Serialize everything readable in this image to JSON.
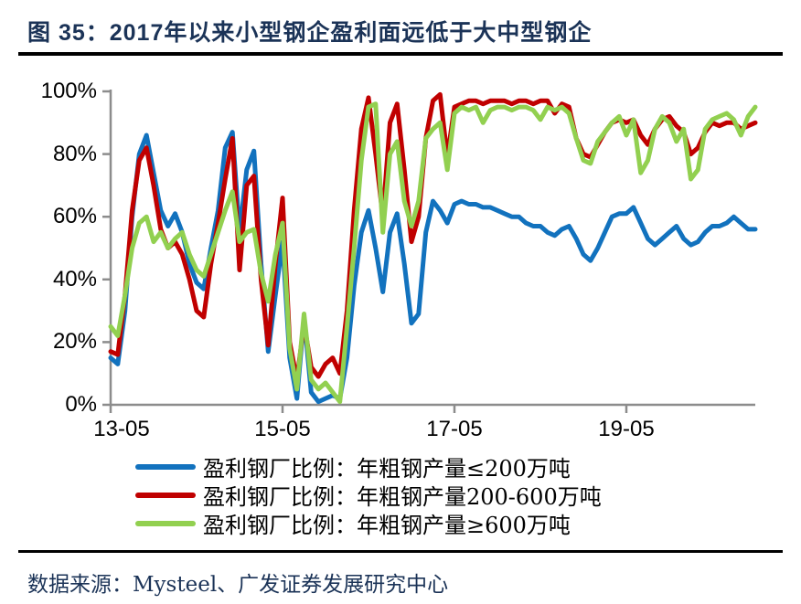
{
  "title": "图 35：2017年以来小型钢企盈利面远低于大中型钢企",
  "source": "数据来源：Mysteel、广发证券发展研究中心",
  "colors": {
    "title_navy": "#1b3357",
    "axis_gray": "#8c8c8c",
    "blue": "#1272be",
    "red": "#c00000",
    "green": "#92d050"
  },
  "chart_data": {
    "type": "line",
    "title": "",
    "xlabel": "",
    "ylabel": "",
    "x_unit": "months since 2013-05 (weekly survey, approximated monthly)",
    "x_tick_labels": [
      "13-05",
      "15-05",
      "17-05",
      "19-05"
    ],
    "x_tick_months": [
      0,
      24,
      48,
      72
    ],
    "x_range_months": [
      0,
      90
    ],
    "ylim": [
      0,
      100
    ],
    "y_tick_labels": [
      "0%",
      "20%",
      "40%",
      "60%",
      "80%",
      "100%"
    ],
    "y_tick_values": [
      0,
      20,
      40,
      60,
      80,
      100
    ],
    "grid": false,
    "legend_position": "bottom-left",
    "series": [
      {
        "name": "盈利钢厂比例：年粗钢产量≤200万吨",
        "color": "#1272be",
        "values": [
          15,
          13,
          30,
          60,
          80,
          86,
          74,
          62,
          57,
          61,
          55,
          45,
          39,
          37,
          50,
          62,
          82,
          87,
          55,
          75,
          81,
          45,
          17,
          35,
          52,
          15,
          2,
          28,
          4,
          1,
          2,
          3,
          2,
          15,
          38,
          55,
          62,
          50,
          36,
          55,
          61,
          45,
          26,
          29,
          55,
          65,
          62,
          58,
          64,
          65,
          64,
          64,
          63,
          63,
          62,
          61,
          60,
          60,
          58,
          57,
          57,
          55,
          54,
          56,
          57,
          53,
          48,
          46,
          50,
          55,
          60,
          61,
          61,
          63,
          58,
          53,
          51,
          53,
          55,
          57,
          53,
          51,
          52,
          55,
          57,
          57,
          58,
          60,
          58,
          56,
          56
        ]
      },
      {
        "name": "盈利钢厂比例：年粗钢产量200-600万吨",
        "color": "#c00000",
        "values": [
          17,
          16,
          35,
          62,
          78,
          82,
          70,
          56,
          50,
          52,
          48,
          40,
          30,
          28,
          45,
          58,
          72,
          85,
          43,
          70,
          73,
          40,
          19,
          45,
          66,
          20,
          8,
          26,
          12,
          9,
          13,
          15,
          10,
          30,
          62,
          88,
          98,
          80,
          60,
          90,
          96,
          75,
          52,
          60,
          85,
          97,
          99,
          79,
          95,
          96,
          97,
          97,
          96,
          97,
          97,
          97,
          96,
          97,
          97,
          96,
          97,
          97,
          93,
          96,
          95,
          85,
          80,
          79,
          83,
          87,
          90,
          91,
          90,
          91,
          86,
          83,
          88,
          91,
          92,
          89,
          87,
          80,
          82,
          87,
          90,
          89,
          90,
          90,
          88,
          89,
          90
        ]
      },
      {
        "name": "盈利钢厂比例：年粗钢产量≥600万吨",
        "color": "#92d050",
        "values": [
          25,
          22,
          35,
          50,
          58,
          60,
          52,
          55,
          50,
          53,
          55,
          48,
          43,
          41,
          48,
          55,
          62,
          68,
          52,
          55,
          56,
          42,
          33,
          48,
          58,
          18,
          5,
          29,
          8,
          5,
          7,
          4,
          1,
          25,
          50,
          78,
          95,
          96,
          55,
          80,
          84,
          65,
          57,
          65,
          85,
          88,
          90,
          75,
          93,
          95,
          94,
          95,
          90,
          94,
          95,
          95,
          94,
          95,
          95,
          94,
          91,
          95,
          94,
          95,
          93,
          85,
          78,
          77,
          84,
          87,
          90,
          92,
          86,
          91,
          74,
          78,
          88,
          92,
          90,
          84,
          88,
          72,
          75,
          88,
          91,
          92,
          93,
          91,
          86,
          92,
          95
        ]
      }
    ]
  }
}
